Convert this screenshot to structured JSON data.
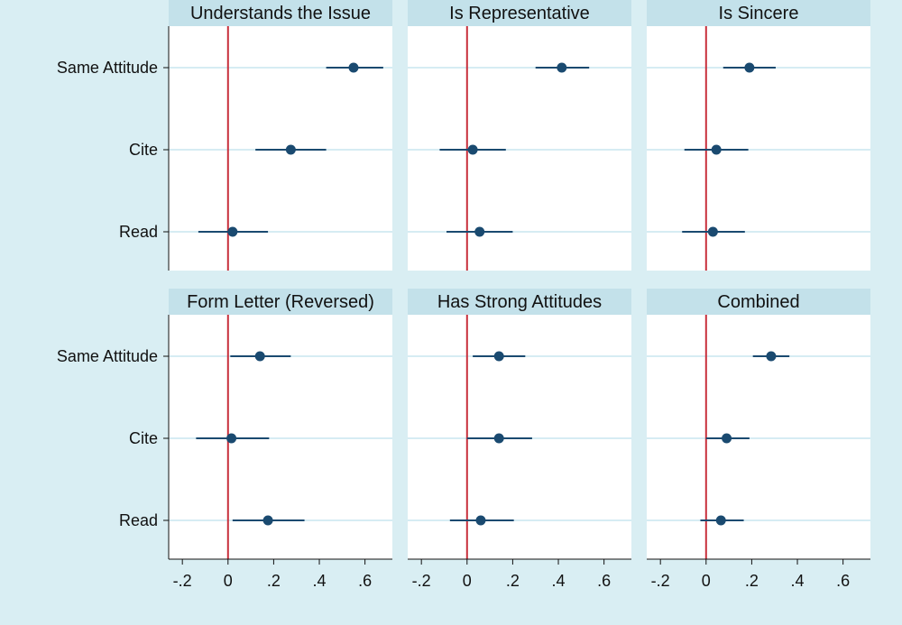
{
  "chart_data": {
    "type": "scatter",
    "subtype": "coefficient-plot",
    "rows": [
      "Same Attitude",
      "Cite",
      "Read"
    ],
    "x_ticks": [
      -0.2,
      0,
      0.2,
      0.4,
      0.6
    ],
    "x_tick_labels": [
      "-.2",
      "0",
      ".2",
      ".4",
      ".6"
    ],
    "xlim": [
      -0.26,
      0.72
    ],
    "reference_line": 0,
    "grid": "horizontal",
    "colors": {
      "background": "#d9eef3",
      "panel": "#ffffff",
      "title_strip": "#c3e1ea",
      "point": "#1a4a70",
      "reference_line": "#c8303c",
      "gridline": "#d6ecf3"
    },
    "panels": [
      {
        "title": "Understands the Issue",
        "points": [
          {
            "label": "Same Attitude",
            "estimate": 0.55,
            "ci_low": 0.43,
            "ci_high": 0.68
          },
          {
            "label": "Cite",
            "estimate": 0.275,
            "ci_low": 0.12,
            "ci_high": 0.43
          },
          {
            "label": "Read",
            "estimate": 0.02,
            "ci_low": -0.13,
            "ci_high": 0.175
          }
        ]
      },
      {
        "title": "Is Representative",
        "points": [
          {
            "label": "Same Attitude",
            "estimate": 0.415,
            "ci_low": 0.3,
            "ci_high": 0.535
          },
          {
            "label": "Cite",
            "estimate": 0.025,
            "ci_low": -0.12,
            "ci_high": 0.17
          },
          {
            "label": "Read",
            "estimate": 0.055,
            "ci_low": -0.09,
            "ci_high": 0.2
          }
        ]
      },
      {
        "title": "Is Sincere",
        "points": [
          {
            "label": "Same Attitude",
            "estimate": 0.19,
            "ci_low": 0.075,
            "ci_high": 0.305
          },
          {
            "label": "Cite",
            "estimate": 0.045,
            "ci_low": -0.095,
            "ci_high": 0.185
          },
          {
            "label": "Read",
            "estimate": 0.03,
            "ci_low": -0.105,
            "ci_high": 0.17
          }
        ]
      },
      {
        "title": "Form Letter (Reversed)",
        "points": [
          {
            "label": "Same Attitude",
            "estimate": 0.14,
            "ci_low": 0.01,
            "ci_high": 0.275
          },
          {
            "label": "Cite",
            "estimate": 0.015,
            "ci_low": -0.14,
            "ci_high": 0.18
          },
          {
            "label": "Read",
            "estimate": 0.175,
            "ci_low": 0.02,
            "ci_high": 0.335
          }
        ]
      },
      {
        "title": "Has Strong Attitudes",
        "points": [
          {
            "label": "Same Attitude",
            "estimate": 0.14,
            "ci_low": 0.025,
            "ci_high": 0.255
          },
          {
            "label": "Cite",
            "estimate": 0.14,
            "ci_low": 0.0,
            "ci_high": 0.285
          },
          {
            "label": "Read",
            "estimate": 0.06,
            "ci_low": -0.075,
            "ci_high": 0.205
          }
        ]
      },
      {
        "title": "Combined",
        "points": [
          {
            "label": "Same Attitude",
            "estimate": 0.285,
            "ci_low": 0.205,
            "ci_high": 0.365
          },
          {
            "label": "Cite",
            "estimate": 0.09,
            "ci_low": 0.0,
            "ci_high": 0.19
          },
          {
            "label": "Read",
            "estimate": 0.065,
            "ci_low": -0.025,
            "ci_high": 0.165
          }
        ]
      }
    ]
  }
}
